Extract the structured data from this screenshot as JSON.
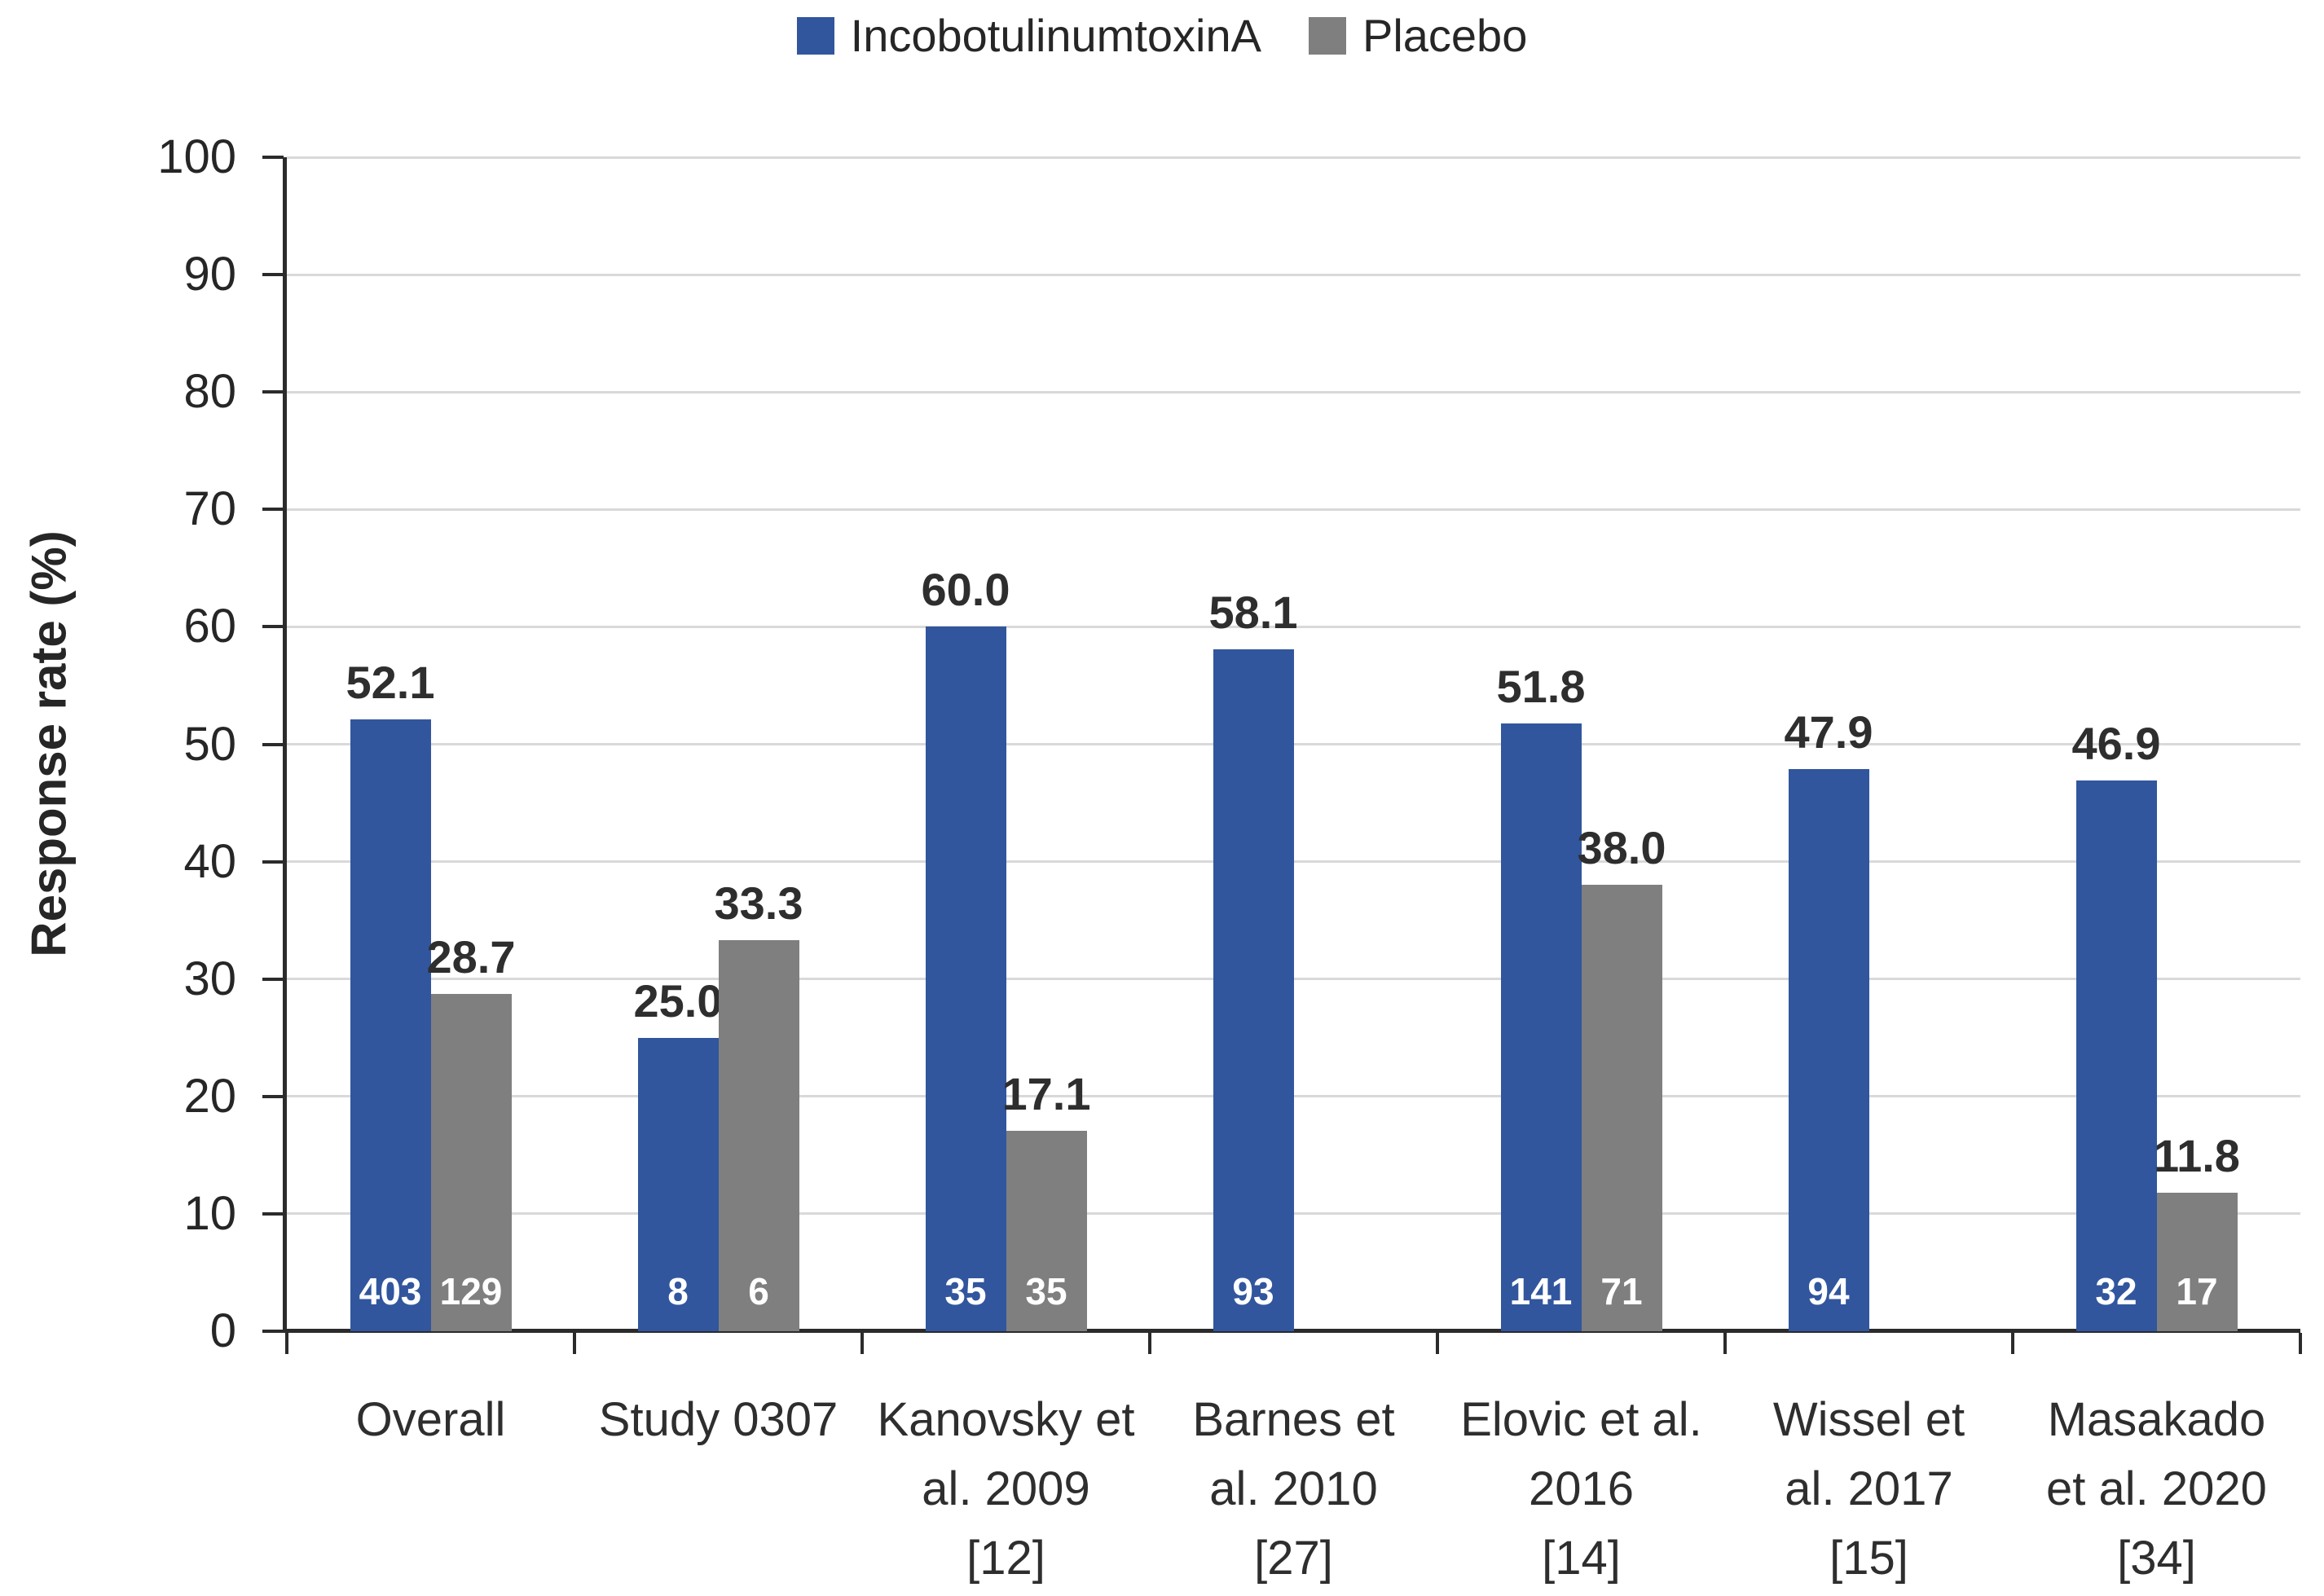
{
  "legend": {
    "items": [
      {
        "label": "IncobotulinumtoxinA",
        "color": "#31569E"
      },
      {
        "label": "Placebo",
        "color": "#7F7F7F"
      }
    ]
  },
  "y_axis": {
    "title": "Response rate (%)",
    "tick_labels": [
      "0",
      "10",
      "20",
      "30",
      "40",
      "50",
      "60",
      "70",
      "80",
      "90",
      "100"
    ],
    "min": 0,
    "max": 100,
    "tick_step": 10
  },
  "chart_data": {
    "type": "bar",
    "title": "",
    "xlabel": "",
    "ylabel": "Response rate (%)",
    "ylim": [
      0,
      100
    ],
    "grid": true,
    "legend_position": "top-center",
    "categories": [
      "Overall",
      "Study 0307",
      "Kanovsky et al. 2009 [12]",
      "Barnes et al. 2010 [27]",
      "Elovic et al. 2016 [14]",
      "Wissel et al. 2017 [15]",
      "Masakado et al. 2020 [34]"
    ],
    "category_label_lines": [
      [
        "Overall"
      ],
      [
        "Study 0307"
      ],
      [
        "Kanovsky et",
        "al. 2009",
        "[12]"
      ],
      [
        "Barnes et",
        "al. 2010",
        "[27]"
      ],
      [
        "Elovic et al.",
        "2016",
        "[14]"
      ],
      [
        "Wissel et",
        "al. 2017",
        "[15]"
      ],
      [
        "Masakado",
        "et al. 2020",
        "[34]"
      ]
    ],
    "series": [
      {
        "name": "IncobotulinumtoxinA",
        "color": "#31569E",
        "values": [
          52.1,
          25.0,
          60.0,
          58.1,
          51.8,
          47.9,
          46.9
        ],
        "value_labels": [
          "52.1",
          "25.0",
          "60.0",
          "58.1",
          "51.8",
          "47.9",
          "46.9"
        ],
        "n_in_bar": [
          "403",
          "8",
          "35",
          "93",
          "141",
          "94",
          "32"
        ]
      },
      {
        "name": "Placebo",
        "color": "#7F7F7F",
        "values": [
          28.7,
          33.3,
          17.1,
          null,
          38.0,
          null,
          11.8
        ],
        "value_labels": [
          "28.7",
          "33.3",
          "17.1",
          null,
          "38.0",
          null,
          "11.8"
        ],
        "n_in_bar": [
          "129",
          "6",
          "35",
          null,
          "71",
          null,
          "17"
        ]
      }
    ],
    "colors": {
      "gridline": "#D9D9D9",
      "axis": "#2B2B2B",
      "value_label_text": "#2E2E2E",
      "tick_label_text": "#262626",
      "n_label_text": "#FFFFFF"
    }
  }
}
